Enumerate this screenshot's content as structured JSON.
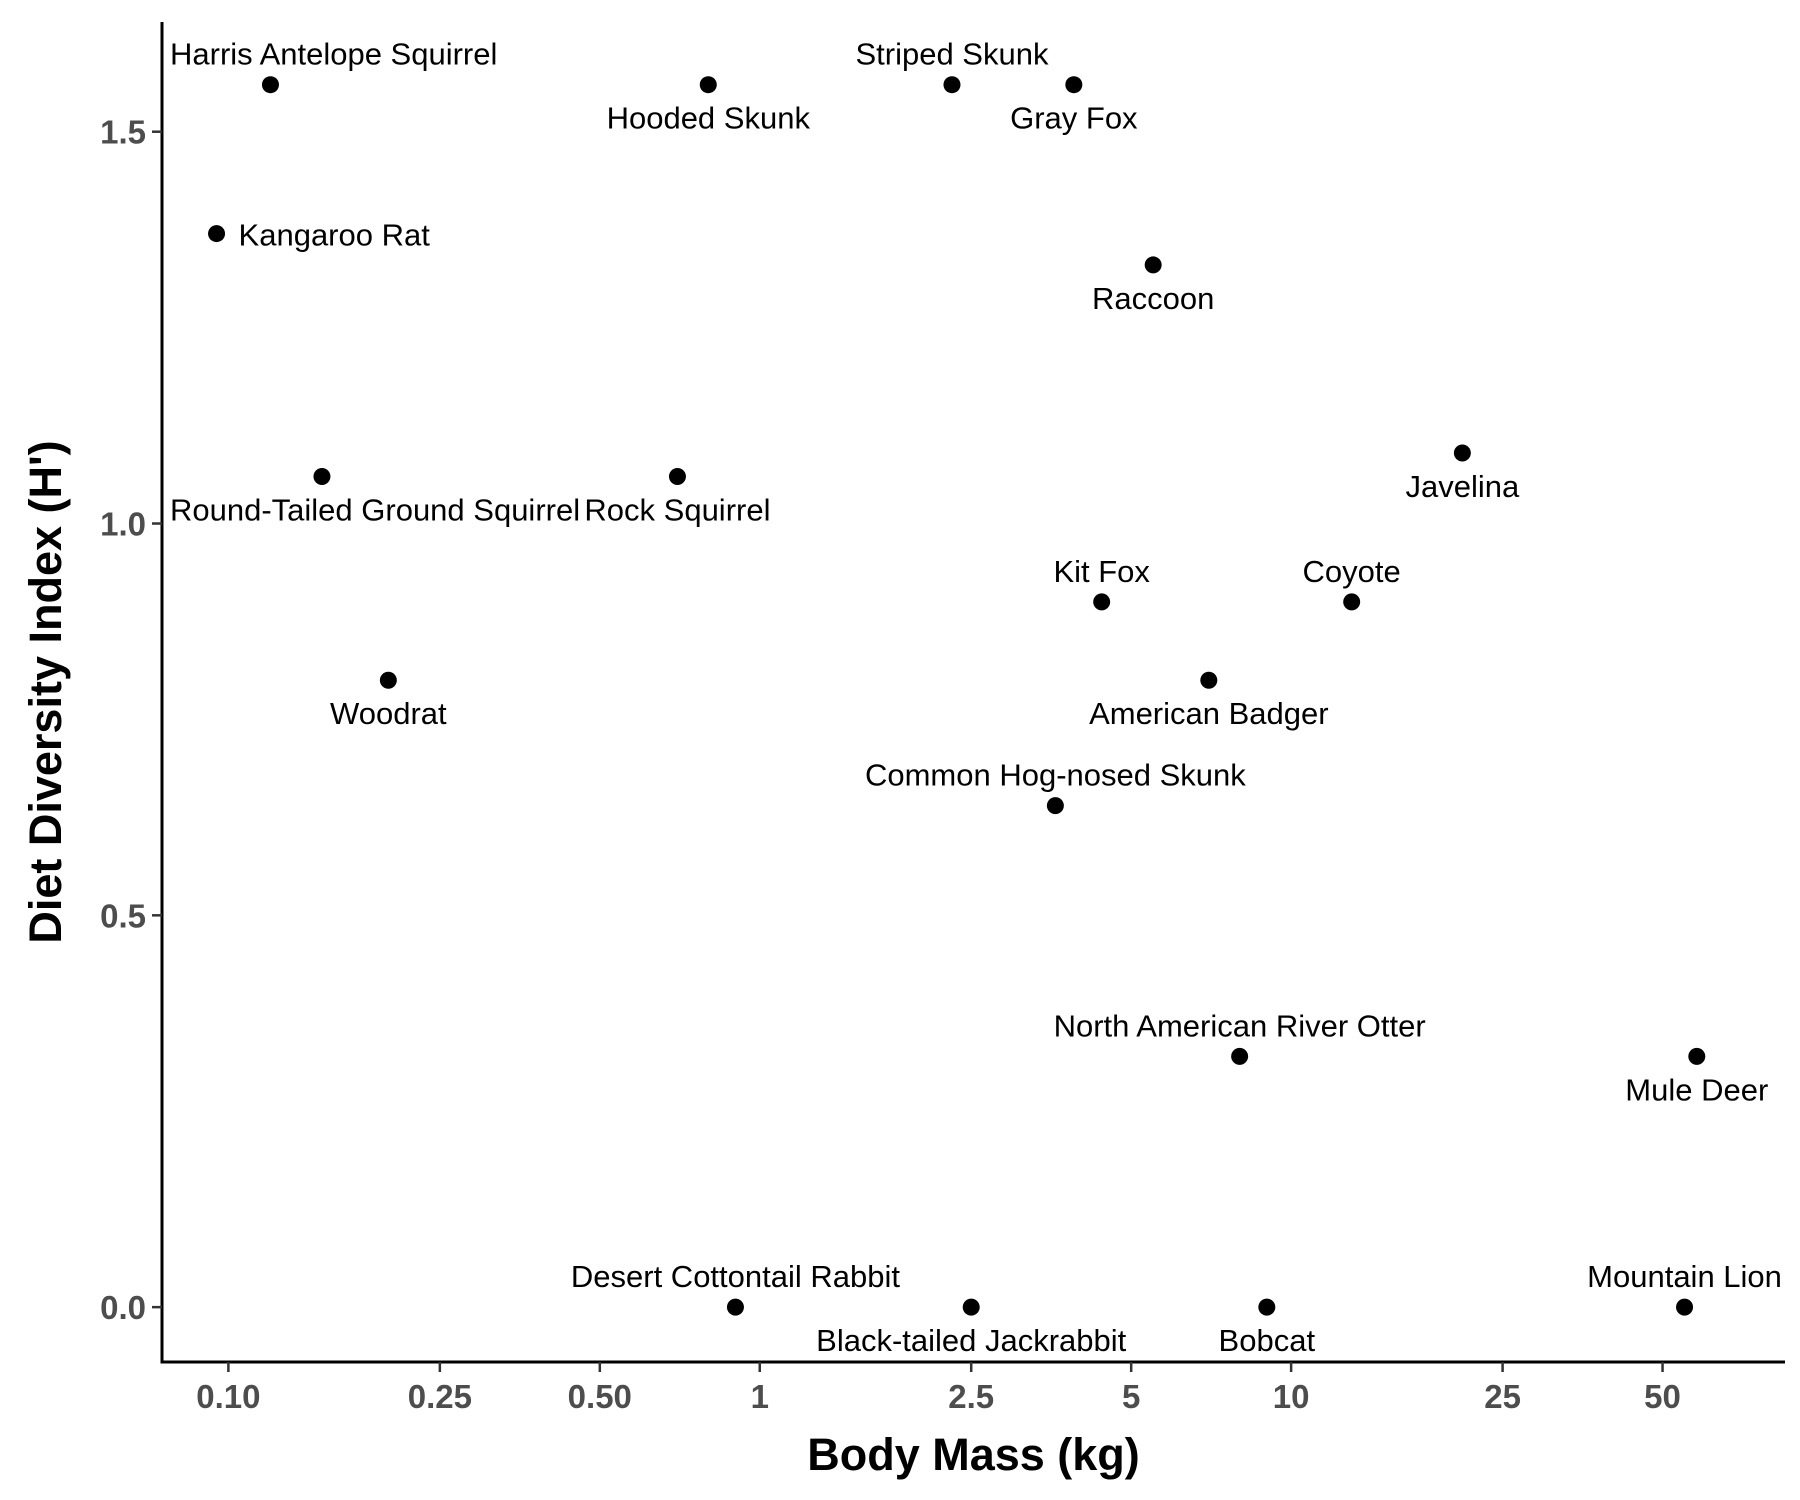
{
  "chart_data": {
    "type": "scatter",
    "title": "",
    "xlabel": "Body Mass (kg)",
    "ylabel": "Diet Diversity Index (H')",
    "x_scale": "log10",
    "xlim": [
      0.075,
      85
    ],
    "ylim": [
      -0.07,
      1.64
    ],
    "x_ticks": [
      {
        "value": 0.1,
        "label": "0.10"
      },
      {
        "value": 0.25,
        "label": "0.25"
      },
      {
        "value": 0.5,
        "label": "0.50"
      },
      {
        "value": 1,
        "label": "1"
      },
      {
        "value": 2.5,
        "label": "2.5"
      },
      {
        "value": 5,
        "label": "5"
      },
      {
        "value": 10,
        "label": "10"
      },
      {
        "value": 25,
        "label": "25"
      },
      {
        "value": 50,
        "label": "50"
      }
    ],
    "y_ticks": [
      {
        "value": 0.0,
        "label": "0.0"
      },
      {
        "value": 0.5,
        "label": "0.5"
      },
      {
        "value": 1.0,
        "label": "1.0"
      },
      {
        "value": 1.5,
        "label": "1.5"
      }
    ],
    "grid": false,
    "legend": "none",
    "point_color": "#000000",
    "points": [
      {
        "label": "Harris Antelope Squirrel",
        "x": 0.12,
        "y": 1.56,
        "label_pos": "above"
      },
      {
        "label": "Kangaroo Rat",
        "x": 0.095,
        "y": 1.37,
        "label_pos": "right"
      },
      {
        "label": "Round-Tailed Ground Squirrel",
        "x": 0.15,
        "y": 1.06,
        "label_pos": "below"
      },
      {
        "label": "Woodrat",
        "x": 0.2,
        "y": 0.8,
        "label_pos": "below"
      },
      {
        "label": "Hooded Skunk",
        "x": 0.8,
        "y": 1.56,
        "label_pos": "below"
      },
      {
        "label": "Rock Squirrel",
        "x": 0.7,
        "y": 1.06,
        "label_pos": "below"
      },
      {
        "label": "Striped Skunk",
        "x": 2.3,
        "y": 1.56,
        "label_pos": "above"
      },
      {
        "label": "Gray Fox",
        "x": 3.9,
        "y": 1.56,
        "label_pos": "below"
      },
      {
        "label": "Raccoon",
        "x": 5.5,
        "y": 1.33,
        "label_pos": "below"
      },
      {
        "label": "Javelina",
        "x": 21,
        "y": 1.09,
        "label_pos": "below"
      },
      {
        "label": "Kit Fox",
        "x": 4.4,
        "y": 0.9,
        "label_pos": "above"
      },
      {
        "label": "Coyote",
        "x": 13,
        "y": 0.9,
        "label_pos": "above"
      },
      {
        "label": "American Badger",
        "x": 7,
        "y": 0.8,
        "label_pos": "below"
      },
      {
        "label": "Common Hog-nosed Skunk",
        "x": 3.6,
        "y": 0.64,
        "label_pos": "above"
      },
      {
        "label": "North American River Otter",
        "x": 8,
        "y": 0.32,
        "label_pos": "above"
      },
      {
        "label": "Mule Deer",
        "x": 58,
        "y": 0.32,
        "label_pos": "below"
      },
      {
        "label": "Desert Cottontail Rabbit",
        "x": 0.9,
        "y": 0.0,
        "label_pos": "above"
      },
      {
        "label": "Black-tailed Jackrabbit",
        "x": 2.5,
        "y": 0.0,
        "label_pos": "below"
      },
      {
        "label": "Bobcat",
        "x": 9,
        "y": 0.0,
        "label_pos": "below"
      },
      {
        "label": "Mountain Lion",
        "x": 55,
        "y": 0.0,
        "label_pos": "above"
      }
    ]
  }
}
